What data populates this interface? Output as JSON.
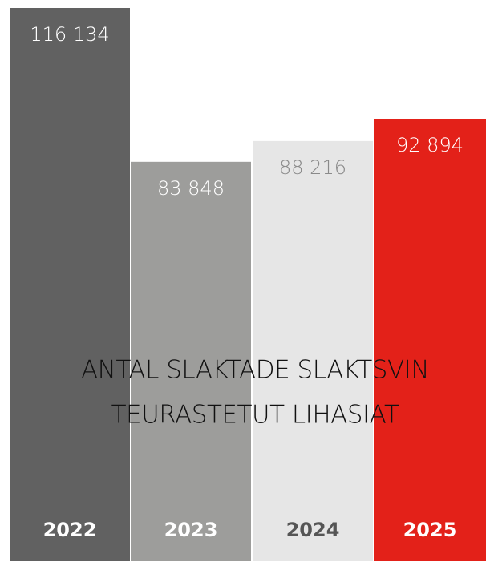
{
  "chart_data": {
    "type": "bar",
    "title": "ANTAL SLAKTADE SLAKTSVIN",
    "subtitle": "TEURASTETUT LIHASIAT",
    "categories": [
      "2022",
      "2023",
      "2024",
      "2025"
    ],
    "values": [
      116134,
      83848,
      88216,
      92894
    ],
    "value_labels": [
      "116 134",
      "83 848",
      "88 216",
      "92 894"
    ],
    "colors": [
      "#616161",
      "#9d9d9b",
      "#e6e6e6",
      "#e32119"
    ]
  }
}
